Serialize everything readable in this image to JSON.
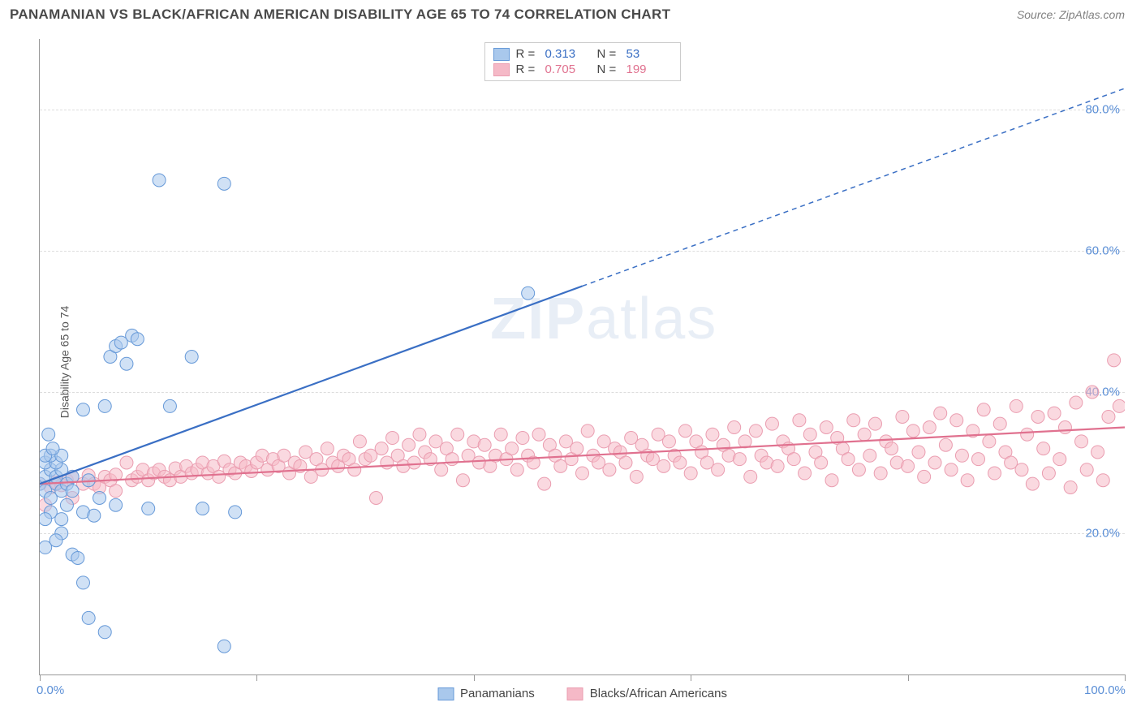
{
  "header": {
    "title": "PANAMANIAN VS BLACK/AFRICAN AMERICAN DISABILITY AGE 65 TO 74 CORRELATION CHART",
    "source": "Source: ZipAtlas.com"
  },
  "y_axis_label": "Disability Age 65 to 74",
  "watermark_a": "ZIP",
  "watermark_b": "atlas",
  "chart": {
    "type": "scatter",
    "background_color": "#ffffff",
    "grid_color": "#dddddd",
    "axis_color": "#999999",
    "xlim": [
      0,
      100
    ],
    "ylim": [
      0,
      90
    ],
    "x_ticks": [
      0,
      20,
      40,
      60,
      80,
      100
    ],
    "x_tick_labels": {
      "0": "0.0%",
      "100": "100.0%"
    },
    "y_ticks": [
      20,
      40,
      60,
      80
    ],
    "y_tick_labels": {
      "20": "20.0%",
      "40": "40.0%",
      "60": "60.0%",
      "80": "80.0%"
    },
    "marker_radius": 8,
    "marker_opacity": 0.55,
    "line_width": 2.2,
    "series": [
      {
        "name": "Panamanians",
        "color_fill": "#a9c8ec",
        "color_stroke": "#6699d8",
        "color_text": "#3a6fc4",
        "R": "0.313",
        "N": "53",
        "trend": {
          "x1": 0,
          "y1": 27,
          "x2": 50,
          "y2": 55,
          "x2_dashed": 100,
          "y2_dashed": 83
        },
        "points": [
          [
            0,
            27
          ],
          [
            0.5,
            26
          ],
          [
            0.5,
            28
          ],
          [
            1,
            25
          ],
          [
            1,
            29
          ],
          [
            0.5,
            30
          ],
          [
            1.5,
            27
          ],
          [
            1,
            23
          ],
          [
            2,
            26
          ],
          [
            1.5,
            28
          ],
          [
            0.5,
            22
          ],
          [
            2,
            29
          ],
          [
            1.5,
            30
          ],
          [
            1,
            31
          ],
          [
            2.5,
            27
          ],
          [
            0.5,
            31
          ],
          [
            2,
            22
          ],
          [
            3,
            26
          ],
          [
            2.5,
            24
          ],
          [
            2,
            31
          ],
          [
            0.5,
            18
          ],
          [
            3,
            28
          ],
          [
            2,
            20
          ],
          [
            1.5,
            19
          ],
          [
            3,
            17
          ],
          [
            3.5,
            16.5
          ],
          [
            4,
            23
          ],
          [
            4.5,
            27.5
          ],
          [
            5,
            22.5
          ],
          [
            5.5,
            25
          ],
          [
            6,
            38
          ],
          [
            6.5,
            45
          ],
          [
            4,
            37.5
          ],
          [
            7,
            46.5
          ],
          [
            7.5,
            47
          ],
          [
            8,
            44
          ],
          [
            8.5,
            48
          ],
          [
            9,
            47.5
          ],
          [
            7,
            24
          ],
          [
            10,
            23.5
          ],
          [
            12,
            38
          ],
          [
            14,
            45
          ],
          [
            15,
            23.5
          ],
          [
            4,
            13
          ],
          [
            4.5,
            8
          ],
          [
            6,
            6
          ],
          [
            17,
            4
          ],
          [
            18,
            23
          ],
          [
            11,
            70
          ],
          [
            17,
            69.5
          ],
          [
            0.8,
            34
          ],
          [
            1.2,
            32
          ],
          [
            45,
            54
          ]
        ]
      },
      {
        "name": "Blacks/African Americans",
        "color_fill": "#f5b9c7",
        "color_stroke": "#ea9db0",
        "color_text": "#e0718f",
        "R": "0.705",
        "N": "199",
        "trend": {
          "x1": 0,
          "y1": 27,
          "x2": 100,
          "y2": 35
        },
        "points": [
          [
            0,
            27
          ],
          [
            1,
            26.5
          ],
          [
            1.5,
            27.2
          ],
          [
            2,
            26.8
          ],
          [
            0.5,
            24
          ],
          [
            2.5,
            27.5
          ],
          [
            3,
            25
          ],
          [
            3,
            28
          ],
          [
            4,
            27
          ],
          [
            4.5,
            28.2
          ],
          [
            5,
            27
          ],
          [
            5.5,
            26.5
          ],
          [
            6,
            28
          ],
          [
            6.5,
            27.5
          ],
          [
            7,
            28.3
          ],
          [
            7,
            26
          ],
          [
            8,
            30
          ],
          [
            8.5,
            27.5
          ],
          [
            9,
            28
          ],
          [
            9.5,
            29
          ],
          [
            10,
            27.5
          ],
          [
            10.5,
            28.5
          ],
          [
            11,
            29
          ],
          [
            11.5,
            28
          ],
          [
            12,
            27.5
          ],
          [
            12.5,
            29.2
          ],
          [
            13,
            28
          ],
          [
            13.5,
            29.5
          ],
          [
            14,
            28.5
          ],
          [
            14.5,
            29
          ],
          [
            15,
            30
          ],
          [
            15.5,
            28.5
          ],
          [
            16,
            29.5
          ],
          [
            16.5,
            28
          ],
          [
            17,
            30.2
          ],
          [
            17.5,
            29
          ],
          [
            18,
            28.5
          ],
          [
            18.5,
            30
          ],
          [
            19,
            29.5
          ],
          [
            19.5,
            28.8
          ],
          [
            20,
            30
          ],
          [
            20.5,
            31
          ],
          [
            21,
            29
          ],
          [
            21.5,
            30.5
          ],
          [
            22,
            29.5
          ],
          [
            22.5,
            31
          ],
          [
            23,
            28.5
          ],
          [
            23.5,
            30
          ],
          [
            24,
            29.5
          ],
          [
            24.5,
            31.5
          ],
          [
            25,
            28
          ],
          [
            25.5,
            30.5
          ],
          [
            26,
            29
          ],
          [
            26.5,
            32
          ],
          [
            27,
            30
          ],
          [
            27.5,
            29.5
          ],
          [
            28,
            31
          ],
          [
            28.5,
            30.5
          ],
          [
            29,
            29
          ],
          [
            29.5,
            33
          ],
          [
            30,
            30.5
          ],
          [
            30.5,
            31
          ],
          [
            31,
            25
          ],
          [
            31.5,
            32
          ],
          [
            32,
            30
          ],
          [
            32.5,
            33.5
          ],
          [
            33,
            31
          ],
          [
            33.5,
            29.5
          ],
          [
            34,
            32.5
          ],
          [
            34.5,
            30
          ],
          [
            35,
            34
          ],
          [
            35.5,
            31.5
          ],
          [
            36,
            30.5
          ],
          [
            36.5,
            33
          ],
          [
            37,
            29
          ],
          [
            37.5,
            32
          ],
          [
            38,
            30.5
          ],
          [
            38.5,
            34
          ],
          [
            39,
            27.5
          ],
          [
            39.5,
            31
          ],
          [
            40,
            33
          ],
          [
            40.5,
            30
          ],
          [
            41,
            32.5
          ],
          [
            41.5,
            29.5
          ],
          [
            42,
            31
          ],
          [
            42.5,
            34
          ],
          [
            43,
            30.5
          ],
          [
            43.5,
            32
          ],
          [
            44,
            29
          ],
          [
            44.5,
            33.5
          ],
          [
            45,
            31
          ],
          [
            45.5,
            30
          ],
          [
            46,
            34
          ],
          [
            46.5,
            27
          ],
          [
            47,
            32.5
          ],
          [
            47.5,
            31
          ],
          [
            48,
            29.5
          ],
          [
            48.5,
            33
          ],
          [
            49,
            30.5
          ],
          [
            49.5,
            32
          ],
          [
            50,
            28.5
          ],
          [
            50.5,
            34.5
          ],
          [
            51,
            31
          ],
          [
            51.5,
            30
          ],
          [
            52,
            33
          ],
          [
            52.5,
            29
          ],
          [
            53,
            32
          ],
          [
            53.5,
            31.5
          ],
          [
            54,
            30
          ],
          [
            54.5,
            33.5
          ],
          [
            55,
            28
          ],
          [
            55.5,
            32.5
          ],
          [
            56,
            31
          ],
          [
            56.5,
            30.5
          ],
          [
            57,
            34
          ],
          [
            57.5,
            29.5
          ],
          [
            58,
            33
          ],
          [
            58.5,
            31
          ],
          [
            59,
            30
          ],
          [
            59.5,
            34.5
          ],
          [
            60,
            28.5
          ],
          [
            60.5,
            33
          ],
          [
            61,
            31.5
          ],
          [
            61.5,
            30
          ],
          [
            62,
            34
          ],
          [
            62.5,
            29
          ],
          [
            63,
            32.5
          ],
          [
            63.5,
            31
          ],
          [
            64,
            35
          ],
          [
            64.5,
            30.5
          ],
          [
            65,
            33
          ],
          [
            65.5,
            28
          ],
          [
            66,
            34.5
          ],
          [
            66.5,
            31
          ],
          [
            67,
            30
          ],
          [
            67.5,
            35.5
          ],
          [
            68,
            29.5
          ],
          [
            68.5,
            33
          ],
          [
            69,
            32
          ],
          [
            69.5,
            30.5
          ],
          [
            70,
            36
          ],
          [
            70.5,
            28.5
          ],
          [
            71,
            34
          ],
          [
            71.5,
            31.5
          ],
          [
            72,
            30
          ],
          [
            72.5,
            35
          ],
          [
            73,
            27.5
          ],
          [
            73.5,
            33.5
          ],
          [
            74,
            32
          ],
          [
            74.5,
            30.5
          ],
          [
            75,
            36
          ],
          [
            75.5,
            29
          ],
          [
            76,
            34
          ],
          [
            76.5,
            31
          ],
          [
            77,
            35.5
          ],
          [
            77.5,
            28.5
          ],
          [
            78,
            33
          ],
          [
            78.5,
            32
          ],
          [
            79,
            30
          ],
          [
            79.5,
            36.5
          ],
          [
            80,
            29.5
          ],
          [
            80.5,
            34.5
          ],
          [
            81,
            31.5
          ],
          [
            81.5,
            28
          ],
          [
            82,
            35
          ],
          [
            82.5,
            30
          ],
          [
            83,
            37
          ],
          [
            83.5,
            32.5
          ],
          [
            84,
            29
          ],
          [
            84.5,
            36
          ],
          [
            85,
            31
          ],
          [
            85.5,
            27.5
          ],
          [
            86,
            34.5
          ],
          [
            86.5,
            30.5
          ],
          [
            87,
            37.5
          ],
          [
            87.5,
            33
          ],
          [
            88,
            28.5
          ],
          [
            88.5,
            35.5
          ],
          [
            89,
            31.5
          ],
          [
            89.5,
            30
          ],
          [
            90,
            38
          ],
          [
            90.5,
            29
          ],
          [
            91,
            34
          ],
          [
            91.5,
            27
          ],
          [
            92,
            36.5
          ],
          [
            92.5,
            32
          ],
          [
            93,
            28.5
          ],
          [
            93.5,
            37
          ],
          [
            94,
            30.5
          ],
          [
            94.5,
            35
          ],
          [
            95,
            26.5
          ],
          [
            95.5,
            38.5
          ],
          [
            96,
            33
          ],
          [
            96.5,
            29
          ],
          [
            97,
            40
          ],
          [
            97.5,
            31.5
          ],
          [
            98,
            27.5
          ],
          [
            98.5,
            36.5
          ],
          [
            99,
            44.5
          ],
          [
            99.5,
            38
          ]
        ]
      }
    ],
    "legend_top_labels": {
      "r": "R =",
      "n": "N ="
    },
    "legend_bottom": [
      {
        "label": "Panamanians",
        "fill": "#a9c8ec",
        "stroke": "#6699d8"
      },
      {
        "label": "Blacks/African Americans",
        "fill": "#f5b9c7",
        "stroke": "#ea9db0"
      }
    ]
  }
}
